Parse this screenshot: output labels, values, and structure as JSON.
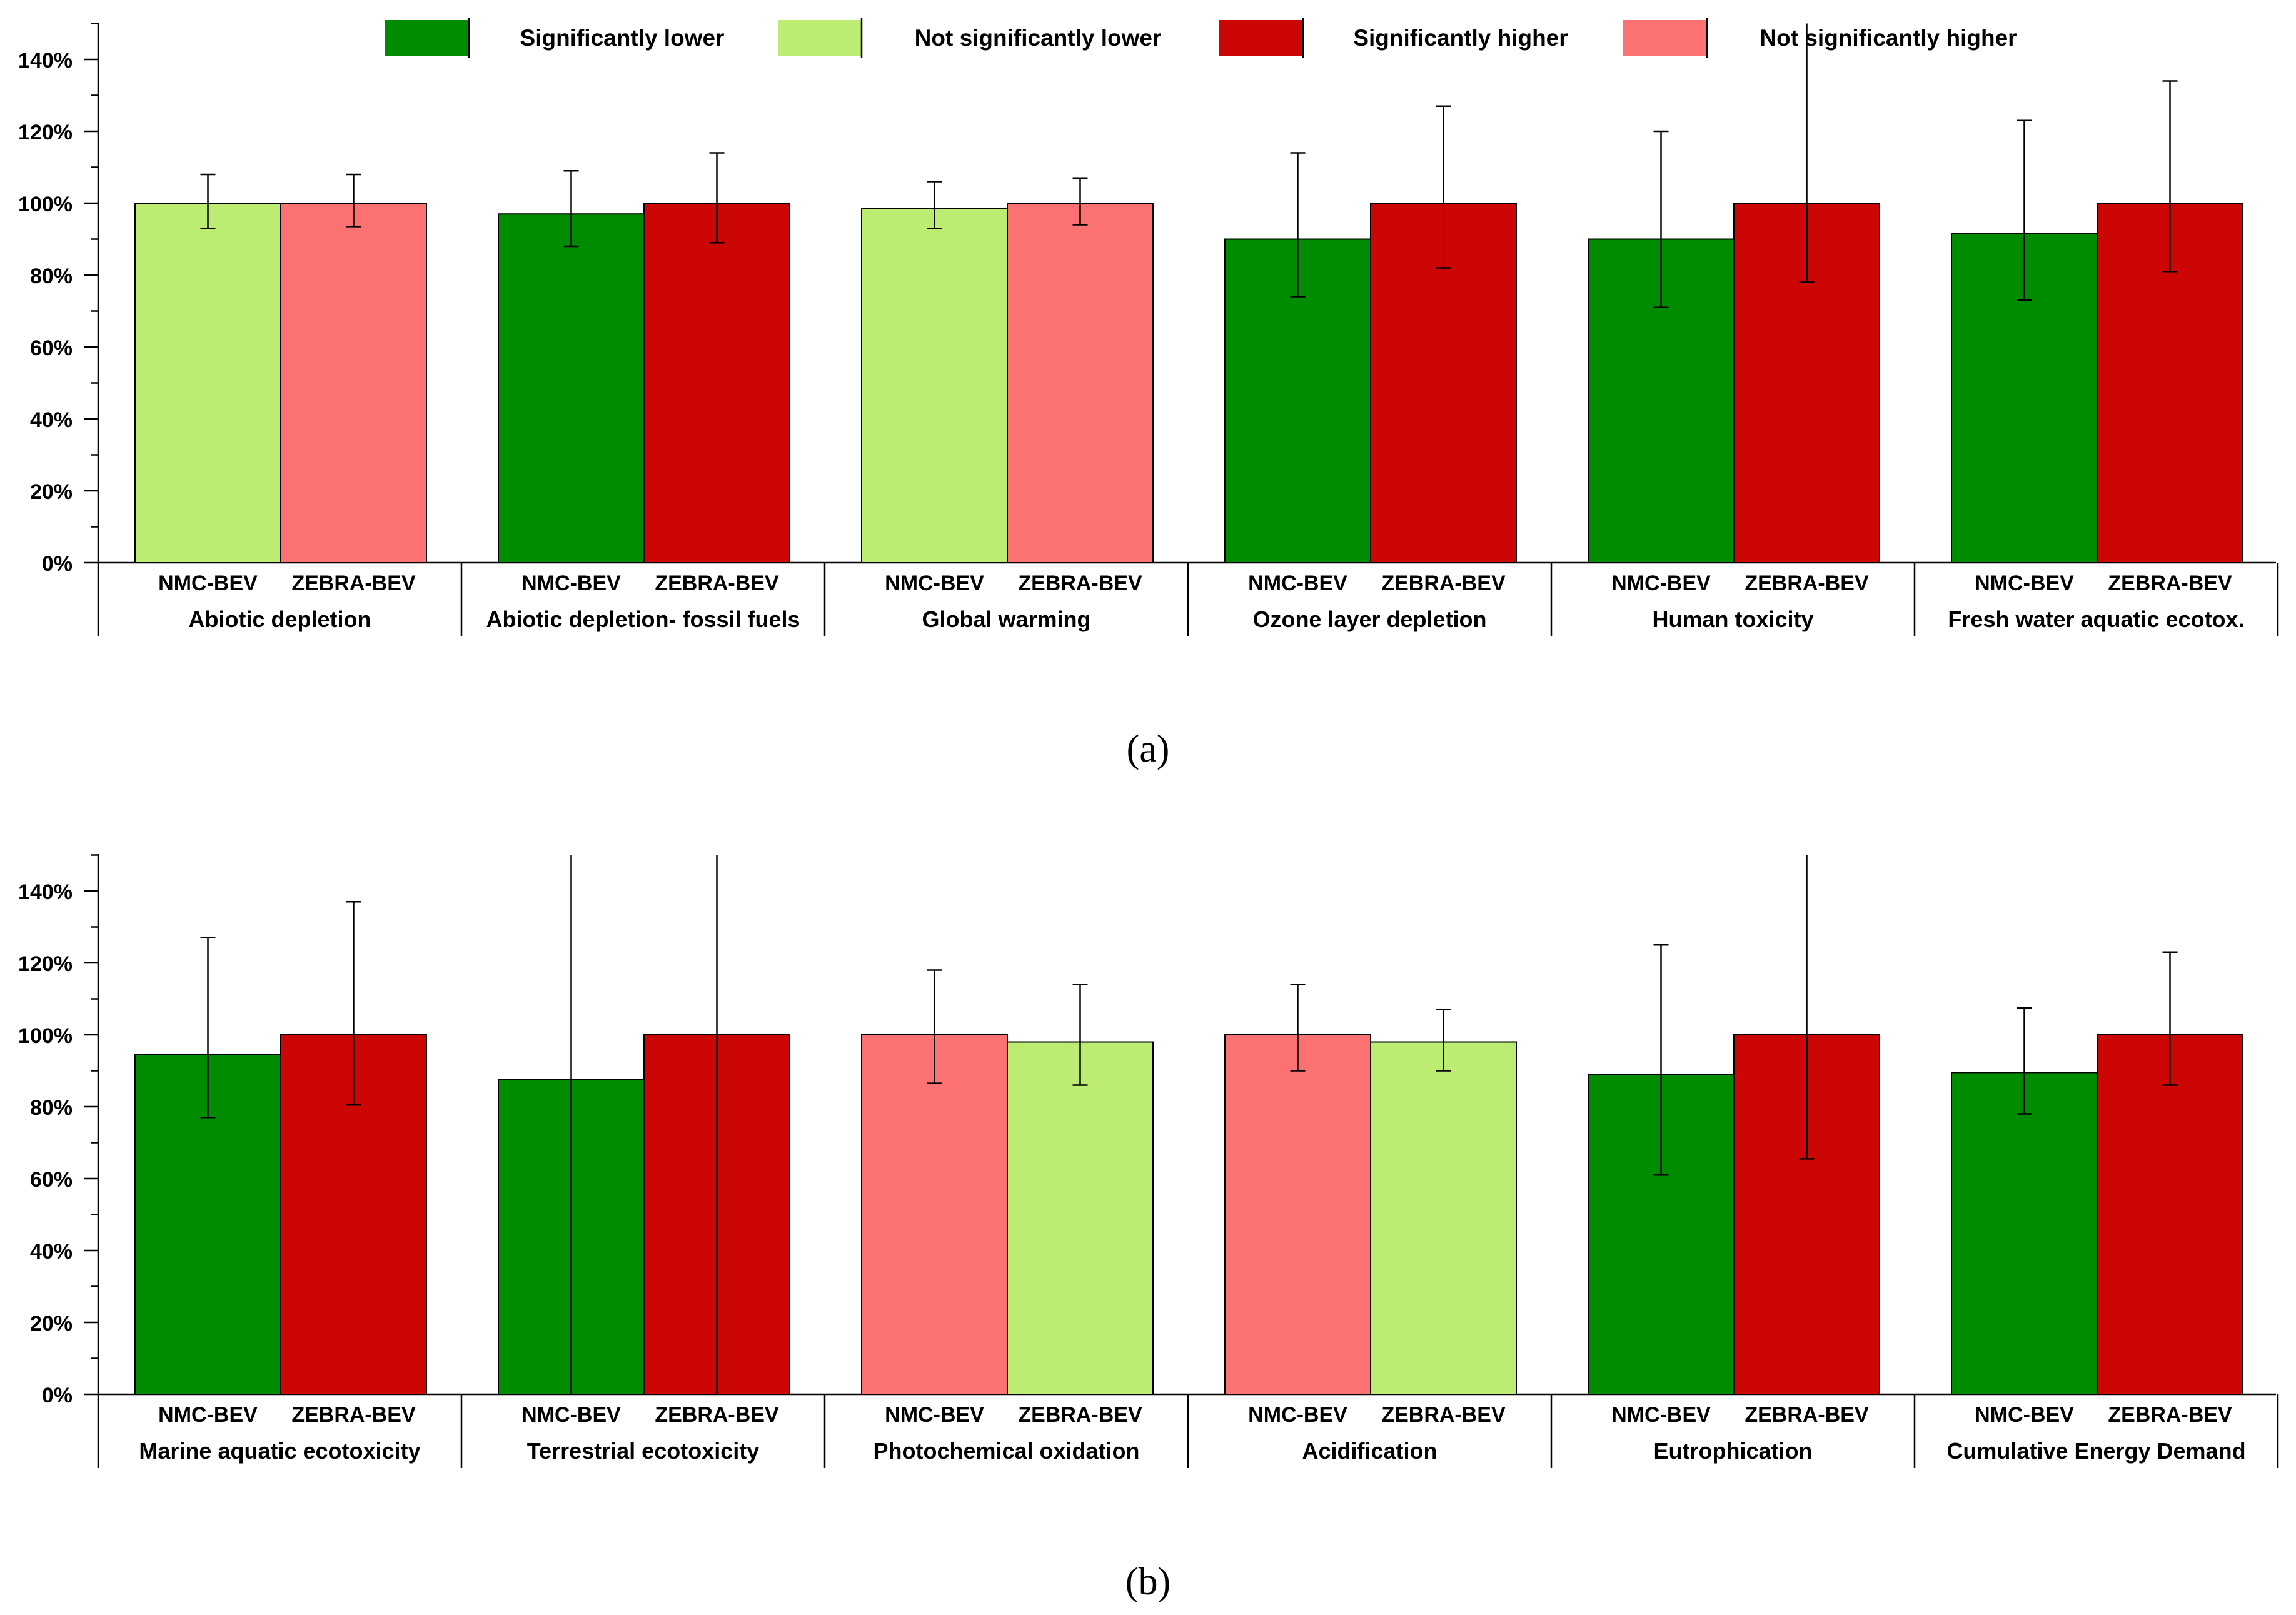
{
  "colors": {
    "sig_lower": "#008C00",
    "nonsig_lower": "#BCEC72",
    "sig_higher": "#CC0505",
    "nonsig_higher": "#FC7272",
    "axis": "#000000"
  },
  "legend": {
    "items": [
      {
        "label": "Significantly lower",
        "color": "#008C00"
      },
      {
        "label": "Not significantly lower",
        "color": "#BCEC72"
      },
      {
        "label": "Significantly higher",
        "color": "#CC0505"
      },
      {
        "label": "Not significantly higher",
        "color": "#FC7272"
      }
    ]
  },
  "chart_data": [
    {
      "type": "bar",
      "panel_label": "(a)",
      "ylim": [
        0,
        150
      ],
      "yticks": [
        {
          "value": 0,
          "label": "0%"
        },
        {
          "value": 20,
          "label": "20%"
        },
        {
          "value": 40,
          "label": "40%"
        },
        {
          "value": 60,
          "label": "60%"
        },
        {
          "value": 80,
          "label": "80%"
        },
        {
          "value": 100,
          "label": "100%"
        },
        {
          "value": 120,
          "label": "120%"
        },
        {
          "value": 140,
          "label": "140%"
        }
      ],
      "groups": [
        {
          "category": "Abiotic depletion",
          "bars": [
            {
              "name": "NMC-BEV",
              "value": 100,
              "err_low": 93,
              "err_high": 108,
              "color": "#BCEC72"
            },
            {
              "name": "ZEBRA-BEV",
              "value": 100,
              "err_low": 93.5,
              "err_high": 108,
              "color": "#FC7272"
            }
          ]
        },
        {
          "category": "Abiotic depletion- fossil fuels",
          "bars": [
            {
              "name": "NMC-BEV",
              "value": 97,
              "err_low": 88,
              "err_high": 109,
              "color": "#008C00"
            },
            {
              "name": "ZEBRA-BEV",
              "value": 100,
              "err_low": 89,
              "err_high": 114,
              "color": "#CC0505"
            }
          ]
        },
        {
          "category": "Global warming",
          "bars": [
            {
              "name": "NMC-BEV",
              "value": 98.5,
              "err_low": 93,
              "err_high": 106,
              "color": "#BCEC72"
            },
            {
              "name": "ZEBRA-BEV",
              "value": 100,
              "err_low": 94,
              "err_high": 107,
              "color": "#FC7272"
            }
          ]
        },
        {
          "category": "Ozone layer depletion",
          "bars": [
            {
              "name": "NMC-BEV",
              "value": 90,
              "err_low": 74,
              "err_high": 114,
              "color": "#008C00"
            },
            {
              "name": "ZEBRA-BEV",
              "value": 100,
              "err_low": 82,
              "err_high": 127,
              "color": "#CC0505"
            }
          ]
        },
        {
          "category": "Human toxicity",
          "bars": [
            {
              "name": "NMC-BEV",
              "value": 90,
              "err_low": 71,
              "err_high": 120,
              "color": "#008C00"
            },
            {
              "name": "ZEBRA-BEV",
              "value": 100,
              "err_low": 78,
              "err_high": 150,
              "color": "#CC0505"
            }
          ]
        },
        {
          "category": "Fresh water aquatic ecotox.",
          "bars": [
            {
              "name": "NMC-BEV",
              "value": 91.5,
              "err_low": 73,
              "err_high": 123,
              "color": "#008C00"
            },
            {
              "name": "ZEBRA-BEV",
              "value": 100,
              "err_low": 81,
              "err_high": 134,
              "color": "#CC0505"
            }
          ]
        }
      ]
    },
    {
      "type": "bar",
      "panel_label": "(b)",
      "ylim": [
        0,
        150
      ],
      "yticks": [
        {
          "value": 0,
          "label": "0%"
        },
        {
          "value": 20,
          "label": "20%"
        },
        {
          "value": 40,
          "label": "40%"
        },
        {
          "value": 60,
          "label": "60%"
        },
        {
          "value": 80,
          "label": "80%"
        },
        {
          "value": 100,
          "label": "100%"
        },
        {
          "value": 120,
          "label": "120%"
        },
        {
          "value": 140,
          "label": "140%"
        }
      ],
      "groups": [
        {
          "category": "Marine aquatic ecotoxicity",
          "bars": [
            {
              "name": "NMC-BEV",
              "value": 94.5,
              "err_low": 77,
              "err_high": 127,
              "color": "#008C00"
            },
            {
              "name": "ZEBRA-BEV",
              "value": 100,
              "err_low": 80.5,
              "err_high": 137,
              "color": "#CC0505"
            }
          ]
        },
        {
          "category": "Terrestrial ecotoxicity",
          "bars": [
            {
              "name": "NMC-BEV",
              "value": 87.5,
              "err_low": 0,
              "err_high": 150,
              "color": "#008C00"
            },
            {
              "name": "ZEBRA-BEV",
              "value": 100,
              "err_low": 0,
              "err_high": 150,
              "color": "#CC0505"
            }
          ]
        },
        {
          "category": "Photochemical oxidation",
          "bars": [
            {
              "name": "NMC-BEV",
              "value": 100,
              "err_low": 86.5,
              "err_high": 118,
              "color": "#FC7272"
            },
            {
              "name": "ZEBRA-BEV",
              "value": 98,
              "err_low": 86,
              "err_high": 114,
              "color": "#BCEC72"
            }
          ]
        },
        {
          "category": "Acidification",
          "bars": [
            {
              "name": "NMC-BEV",
              "value": 100,
              "err_low": 90,
              "err_high": 114,
              "color": "#FC7272"
            },
            {
              "name": "ZEBRA-BEV",
              "value": 98,
              "err_low": 90,
              "err_high": 107,
              "color": "#BCEC72"
            }
          ]
        },
        {
          "category": "Eutrophication",
          "bars": [
            {
              "name": "NMC-BEV",
              "value": 89,
              "err_low": 61,
              "err_high": 125,
              "color": "#008C00"
            },
            {
              "name": "ZEBRA-BEV",
              "value": 100,
              "err_low": 65.5,
              "err_high": 150,
              "color": "#CC0505"
            }
          ]
        },
        {
          "category": "Cumulative Energy Demand",
          "bars": [
            {
              "name": "NMC-BEV",
              "value": 89.5,
              "err_low": 78,
              "err_high": 107.5,
              "color": "#008C00"
            },
            {
              "name": "ZEBRA-BEV",
              "value": 100,
              "err_low": 86,
              "err_high": 123,
              "color": "#CC0505"
            }
          ]
        }
      ]
    }
  ]
}
